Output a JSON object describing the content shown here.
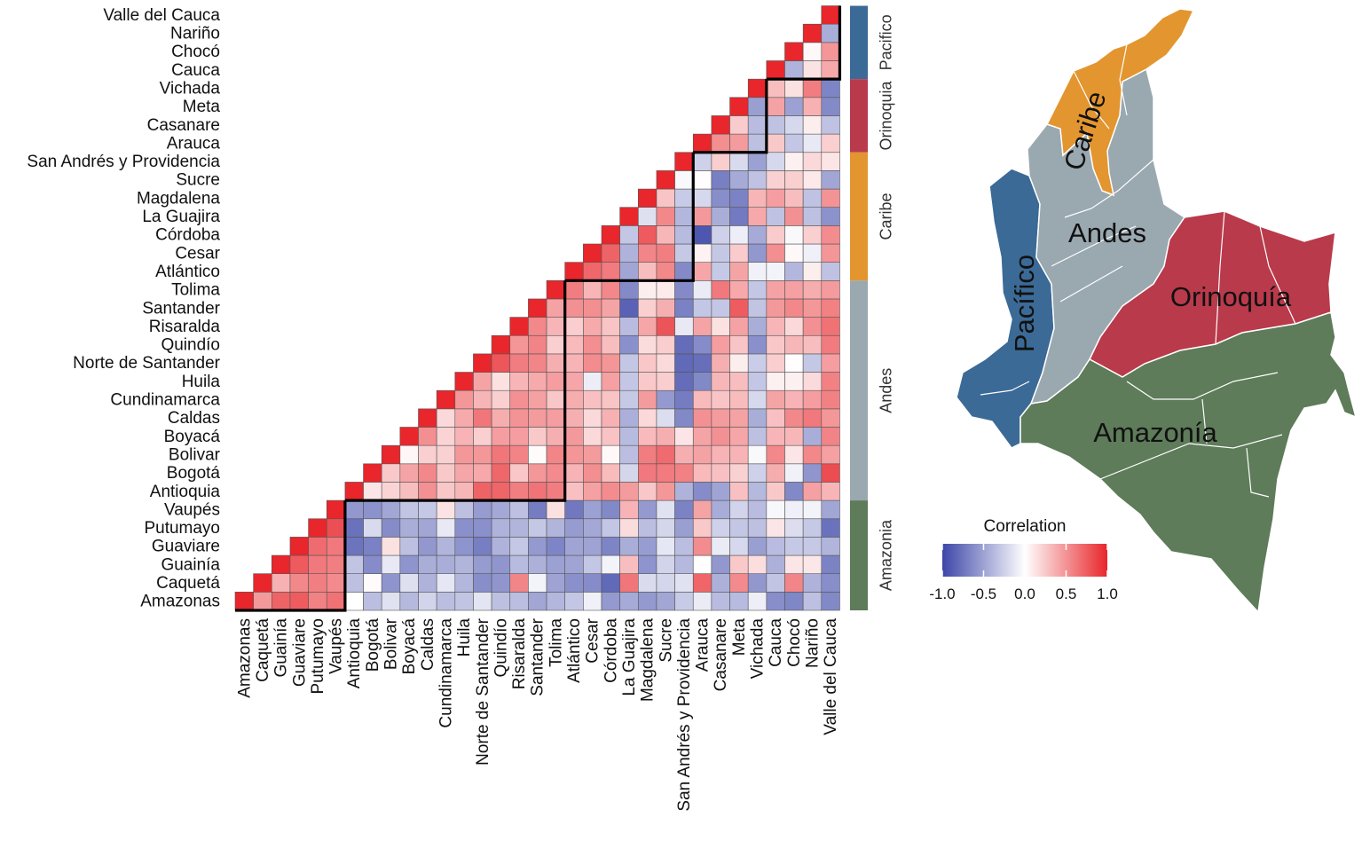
{
  "chart_data": {
    "type": "heatmap",
    "title": "",
    "variant": "lower-triangular correlation matrix",
    "departments": [
      "Amazonas",
      "Caquetá",
      "Guainía",
      "Guaviare",
      "Putumayo",
      "Vaupés",
      "Antioquia",
      "Bogotá",
      "Bolivar",
      "Boyacá",
      "Caldas",
      "Cundinamarca",
      "Huila",
      "Norte de Santander",
      "Quindío",
      "Risaralda",
      "Santander",
      "Tolima",
      "Atlántico",
      "Cesar",
      "Córdoba",
      "La Guajira",
      "Magdalena",
      "Sucre",
      "San Andrés y Providencia",
      "Arauca",
      "Casanare",
      "Meta",
      "Vichada",
      "Cauca",
      "Chocó",
      "Nariño",
      "Valle del Cauca"
    ],
    "regions": [
      {
        "name": "Amazonia",
        "map_label": "Amazonía",
        "count": 6,
        "color": "#5e7b5a"
      },
      {
        "name": "Andes",
        "map_label": "Andes",
        "count": 12,
        "color": "#9aa8b0"
      },
      {
        "name": "Caribe",
        "map_label": "Caribe",
        "count": 7,
        "color": "#e3952f"
      },
      {
        "name": "Orinoquia",
        "map_label": "Orinoquía",
        "count": 4,
        "color": "#b93a4b"
      },
      {
        "name": "Pacifico",
        "map_label": "Pacífico",
        "count": 4,
        "color": "#3b6a96"
      }
    ],
    "values": [
      [
        1.0
      ],
      [
        0.47,
        1.0
      ],
      [
        0.72,
        0.36,
        1.0
      ],
      [
        0.75,
        0.55,
        0.76,
        1.0
      ],
      [
        0.58,
        0.59,
        0.62,
        0.68,
        1.0
      ],
      [
        0.65,
        0.54,
        0.59,
        0.62,
        0.81,
        1.0
      ],
      [
        0.0,
        -0.34,
        -0.32,
        -0.75,
        -0.76,
        -0.56,
        1.0
      ],
      [
        -0.35,
        0.02,
        -0.62,
        -0.68,
        -0.2,
        -0.59,
        0.12,
        1.0
      ],
      [
        -0.16,
        -0.58,
        -0.12,
        0.14,
        -0.62,
        -0.48,
        0.2,
        0.25,
        1.0
      ],
      [
        -0.38,
        -0.17,
        -0.58,
        -0.34,
        -0.44,
        -0.32,
        0.3,
        0.42,
        0.04,
        1.0
      ],
      [
        -0.23,
        -0.41,
        -0.44,
        -0.56,
        -0.48,
        -0.3,
        0.51,
        0.55,
        0.22,
        0.52,
        1.0
      ],
      [
        -0.35,
        -0.13,
        -0.44,
        -0.4,
        -0.12,
        0.13,
        0.26,
        0.25,
        0.21,
        0.2,
        0.18,
        1.0
      ],
      [
        -0.32,
        -0.39,
        -0.4,
        -0.58,
        -0.6,
        -0.34,
        0.33,
        0.41,
        0.48,
        0.35,
        0.39,
        0.48,
        1.0
      ],
      [
        -0.14,
        -0.61,
        -0.54,
        -0.7,
        -0.6,
        -0.54,
        0.72,
        0.4,
        0.48,
        0.22,
        0.63,
        0.34,
        0.42,
        1.0
      ],
      [
        -0.34,
        -0.57,
        -0.57,
        -0.41,
        -0.41,
        -0.47,
        0.71,
        0.7,
        0.63,
        0.45,
        0.38,
        0.22,
        0.14,
        0.78,
        1.0
      ],
      [
        -0.35,
        0.56,
        -0.37,
        -0.3,
        -0.4,
        -0.34,
        0.59,
        0.26,
        0.57,
        0.45,
        0.5,
        0.51,
        0.34,
        0.6,
        0.49,
        1.0
      ],
      [
        -0.48,
        -0.06,
        -0.42,
        -0.55,
        -0.3,
        -0.71,
        0.64,
        0.48,
        0.02,
        0.25,
        0.46,
        0.44,
        0.39,
        0.56,
        0.57,
        0.55,
        1.0
      ],
      [
        -0.39,
        -0.5,
        -0.51,
        -0.66,
        -0.4,
        0.14,
        0.6,
        0.54,
        0.56,
        0.37,
        0.45,
        0.26,
        0.45,
        0.37,
        0.22,
        0.34,
        0.43,
        1.0
      ],
      [
        -0.31,
        -0.6,
        -0.49,
        -0.49,
        -0.54,
        -0.73,
        0.29,
        0.35,
        0.49,
        0.47,
        0.37,
        0.38,
        0.41,
        0.35,
        0.32,
        0.23,
        0.51,
        0.6,
        1.0
      ],
      [
        -0.08,
        -0.62,
        -0.31,
        -0.5,
        -0.47,
        -0.51,
        0.44,
        0.52,
        0.46,
        0.18,
        0.18,
        0.29,
        -0.1,
        0.53,
        0.52,
        0.39,
        0.52,
        0.34,
        0.7,
        1.0
      ],
      [
        -0.55,
        -0.81,
        -0.06,
        -0.66,
        -0.31,
        -0.64,
        0.53,
        0.31,
        0.03,
        0.28,
        0.36,
        0.27,
        0.44,
        0.49,
        0.3,
        0.27,
        0.42,
        0.55,
        0.61,
        0.72,
        1.0
      ],
      [
        -0.46,
        0.63,
        0.3,
        -0.44,
        0.16,
        0.35,
        0.46,
        -0.22,
        -0.35,
        -0.37,
        -0.43,
        -0.29,
        -0.31,
        -0.31,
        -0.6,
        -0.36,
        -0.85,
        -0.63,
        -0.48,
        -0.41,
        -0.31,
        1.0
      ],
      [
        -0.55,
        -0.19,
        -0.58,
        -0.53,
        -0.35,
        -0.55,
        0.26,
        0.62,
        0.6,
        0.32,
        0.18,
        0.46,
        0.25,
        0.26,
        0.16,
        0.41,
        0.22,
        0.08,
        0.3,
        0.56,
        0.76,
        -0.17,
        1.0
      ],
      [
        -0.48,
        -0.22,
        -0.23,
        -0.13,
        -0.22,
        -0.16,
        0.48,
        0.61,
        0.68,
        0.37,
        -0.18,
        -0.55,
        0.23,
        0.17,
        0.23,
        0.79,
        0.37,
        0.09,
        0.55,
        0.59,
        0.33,
        0.55,
        0.27,
        1.0
      ],
      [
        -0.28,
        -0.16,
        -0.38,
        -0.35,
        -0.52,
        -0.67,
        -0.41,
        0.58,
        0.37,
        0.12,
        -0.64,
        -0.71,
        -0.79,
        -0.81,
        -0.79,
        -0.12,
        -0.68,
        -0.63,
        -0.63,
        -0.29,
        -0.37,
        -0.39,
        -0.28,
        -0.03,
        1.0
      ],
      [
        -0.11,
        0.71,
        0.01,
        0.53,
        0.25,
        0.42,
        -0.62,
        0.32,
        0.43,
        0.42,
        0.51,
        0.32,
        -0.64,
        -0.78,
        -0.62,
        0.42,
        -0.31,
        -0.11,
        0.41,
        0.06,
        -0.91,
        0.47,
        -0.21,
        0.01,
        -0.25,
        1.0
      ],
      [
        -0.36,
        -0.42,
        -0.56,
        -0.11,
        -0.25,
        -0.45,
        -0.49,
        0.29,
        0.35,
        0.51,
        0.46,
        0.27,
        0.33,
        0.37,
        0.45,
        0.14,
        -0.31,
        0.62,
        -0.29,
        -0.3,
        -0.25,
        -0.44,
        -0.61,
        -0.69,
        0.23,
        0.52,
        1.0
      ],
      [
        -0.37,
        0.54,
        0.25,
        -0.21,
        -0.31,
        -0.23,
        0.29,
        0.21,
        0.35,
        0.41,
        0.43,
        0.31,
        0.3,
        0.08,
        0.27,
        0.43,
        0.75,
        0.4,
        0.42,
        0.24,
        -0.09,
        -0.72,
        -0.67,
        -0.46,
        -0.2,
        0.46,
        0.24,
        1.0
      ],
      [
        -0.09,
        -0.56,
        0.15,
        -0.52,
        -0.34,
        -0.36,
        -0.38,
        -0.25,
        -0.03,
        -0.34,
        -0.44,
        -0.21,
        -0.31,
        -0.27,
        -0.6,
        -0.44,
        -0.32,
        -0.31,
        -0.07,
        -0.56,
        -0.46,
        0.4,
        0.34,
        -0.33,
        -0.51,
        -0.34,
        -0.36,
        -0.52,
        1.0
      ],
      [
        -0.61,
        -0.32,
        -0.42,
        -0.36,
        0.12,
        -0.04,
        0.25,
        0.38,
        0.55,
        0.34,
        0.29,
        0.42,
        0.07,
        0.23,
        0.26,
        0.34,
        0.47,
        0.43,
        -0.06,
        0.52,
        0.24,
        -0.33,
        0.45,
        0.21,
        -0.21,
        0.25,
        -0.33,
        0.43,
        0.3,
        1.0
      ],
      [
        -0.65,
        0.56,
        0.12,
        -0.29,
        -0.18,
        -0.08,
        -0.64,
        -0.07,
        0.12,
        0.33,
        0.55,
        0.35,
        0.07,
        0.01,
        0.33,
        0.18,
        0.55,
        0.44,
        -0.39,
        0.03,
        -0.03,
        0.51,
        0.3,
        0.22,
        0.07,
        -0.31,
        -0.21,
        -0.51,
        0.14,
        -0.41,
        1.0
      ],
      [
        -0.34,
        -0.41,
        0.11,
        -0.29,
        -0.29,
        -0.06,
        0.44,
        -0.57,
        0.55,
        -0.44,
        0.62,
        0.45,
        0.17,
        -0.3,
        0.3,
        0.51,
        0.48,
        0.38,
        0.08,
        -0.08,
        0.22,
        -0.34,
        -0.33,
        0.1,
        0.18,
        -0.12,
        0.08,
        0.36,
        0.6,
        0.13,
        0.03,
        1.0
      ],
      [
        -0.64,
        -0.61,
        -0.67,
        -0.4,
        -0.76,
        -0.48,
        0.34,
        0.82,
        0.44,
        0.57,
        0.48,
        0.58,
        0.58,
        0.45,
        0.61,
        0.65,
        0.58,
        0.46,
        -0.33,
        0.49,
        0.53,
        -0.59,
        0.5,
        -0.48,
        0.12,
        0.22,
        -0.33,
        -0.63,
        -0.66,
        0.4,
        0.49,
        -0.44,
        1.0
      ]
    ],
    "x_labels": [
      "Amazonas",
      "Caquetá",
      "Guainía",
      "Guaviare",
      "Putumayo",
      "Vaupés",
      "Antioquia",
      "Bogotá",
      "Bolivar",
      "Boyacá",
      "Caldas",
      "Cundinamarca",
      "Huila",
      "Norte de Santander",
      "Quindío",
      "Risaralda",
      "Santander",
      "Tolima",
      "Atlántico",
      "Cesar",
      "Córdoba",
      "La Guajira",
      "Magdalena",
      "Sucre",
      "San Andrés y Providencia",
      "Arauca",
      "Casanare",
      "Meta",
      "Vichada",
      "Cauca",
      "Chocó",
      "Nariño",
      "Valle del Cauca"
    ],
    "y_labels": [
      "Valle del Cauca",
      "Nariño",
      "Chocó",
      "Cauca",
      "Vichada",
      "Meta",
      "Casanare",
      "Arauca",
      "San Andrés y Providencia",
      "Sucre",
      "Magdalena",
      "La Guajira",
      "Córdoba",
      "Cesar",
      "Atlántico",
      "Tolima",
      "Santander",
      "Risaralda",
      "Quindío",
      "Norte de Santander",
      "Huila",
      "Cundinamarca",
      "Caldas",
      "Boyacá",
      "Bolivar",
      "Bogotá",
      "Antioquia",
      "Vaupés",
      "Putumayo",
      "Guaviare",
      "Guainía",
      "Caquetá",
      "Amazonas"
    ],
    "legend": {
      "title": "Correlation",
      "range": [
        -1.0,
        1.0
      ],
      "ticks": [
        -1.0,
        -0.5,
        0.0,
        0.5,
        1.0
      ],
      "tick_labels": [
        "-1.0",
        "-0.5",
        "0.0",
        "0.5",
        "1.0"
      ],
      "colors": [
        "#3c46a8",
        "#ffffff",
        "#e8262b"
      ]
    }
  },
  "colors": {
    "grid_line": "#555555",
    "block_outline": "#000000",
    "map_border": "#ffffff"
  }
}
